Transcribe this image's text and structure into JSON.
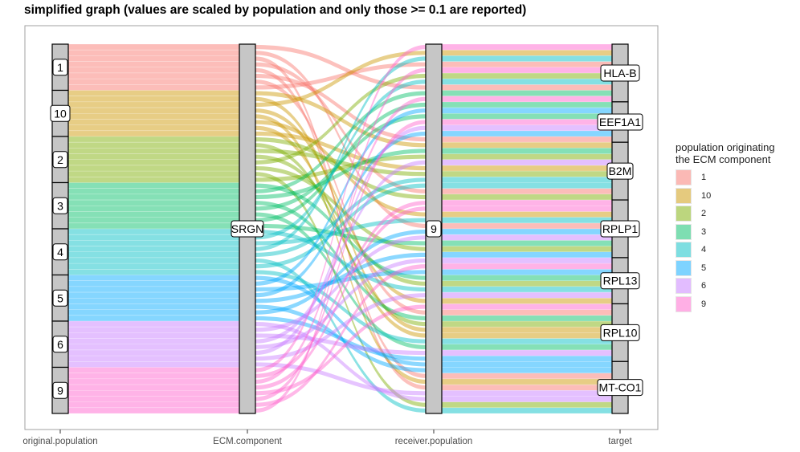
{
  "chart_data": {
    "type": "alluvial",
    "title": "simplified graph (values are scaled by population and only those >= 0.1 are reported)",
    "axes": [
      "original.population",
      "ECM.component",
      "receiver.population",
      "target"
    ],
    "original_population": [
      "1",
      "10",
      "2",
      "3",
      "4",
      "5",
      "6",
      "9"
    ],
    "ecm_component": [
      "SRGN"
    ],
    "receiver_population": [
      "9"
    ],
    "targets": [
      "HLA-B",
      "EEF1A1",
      "B2M",
      "RPLP1",
      "RPL13",
      "RPL10",
      "MT-CO1"
    ],
    "flows_per_population": 8,
    "colors": {
      "1": "#F8766D",
      "10": "#CD9600",
      "2": "#7CAE00",
      "3": "#00BE67",
      "4": "#00BFC4",
      "5": "#00A9FF",
      "6": "#C77CFF",
      "9": "#FF61CC"
    },
    "legend": {
      "title": "population originating\nthe ECM component",
      "position": "right"
    },
    "grid": false
  }
}
